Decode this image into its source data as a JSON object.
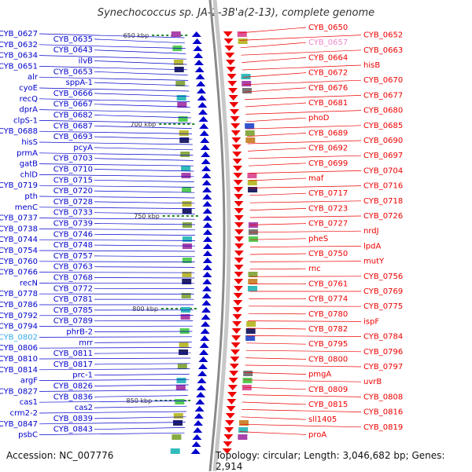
{
  "title": "Synechococcus sp. JA-2-3B'a(2-13), complete genome",
  "accession": "Accession: NC_007776",
  "topology": "Topology: circular; Length: 3,046,682 bp; Genes: 2,914",
  "colors": {
    "forward": "#0000cc",
    "reverse": "#ee0000",
    "tick": "#228822",
    "pink": "#ee88cc",
    "cyan": "#33aaee"
  },
  "kbp_ticks": [
    "650 kbp",
    "700 kbp",
    "750 kbp",
    "800 kbp",
    "850 kbp"
  ],
  "left_labels": [
    "CYB_0627",
    "CYB_0635",
    "CYB_0632",
    "CYB_0643",
    "CYB_0634",
    "ilvB",
    "CYB_0651",
    "CYB_0653",
    "alr",
    "sppA-1",
    "cyoE",
    "CYB_0666",
    "recQ",
    "CYB_0667",
    "dprA",
    "CYB_0682",
    "clpS-1",
    "CYB_0687",
    "CYB_0688",
    "CYB_0693",
    "hisS",
    "pcyA",
    "prmA",
    "CYB_0703",
    "gatB",
    "CYB_0710",
    "chlD",
    "CYB_0715",
    "CYB_0719",
    "CYB_0720",
    "pth",
    "CYB_0728",
    "menC",
    "CYB_0733",
    "CYB_0737",
    "CYB_0739",
    "CYB_0738",
    "CYB_0746",
    "CYB_0744",
    "CYB_0748",
    "CYB_0754",
    "CYB_0757",
    "CYB_0760",
    "CYB_0763",
    "CYB_0766",
    "CYB_0768",
    "recN",
    "CYB_0772",
    "CYB_0778",
    "CYB_0781",
    "CYB_0786",
    "CYB_0785",
    "CYB_0792",
    "CYB_0789",
    "CYB_0794",
    "phrB-2",
    "CYB_0802",
    "mrr",
    "CYB_0806",
    "CYB_0811",
    "CYB_0810",
    "CYB_0817",
    "CYB_0814",
    "prc-1",
    "argF",
    "CYB_0826",
    "CYB_0827",
    "CYB_0836",
    "cas1",
    "cas2",
    "crm2-2",
    "CYB_0839",
    "CYB_0847",
    "CYB_0843",
    "psbC"
  ],
  "right_labels": [
    "CYB_0650",
    "CYB_0652",
    "CYB_0657",
    "CYB_0663",
    "CYB_0664",
    "hisB",
    "CYB_0672",
    "CYB_0670",
    "CYB_0676",
    "CYB_0677",
    "CYB_0681",
    "CYB_0680",
    "phoD",
    "CYB_0685",
    "CYB_0689",
    "CYB_0690",
    "CYB_0692",
    "CYB_0697",
    "CYB_0699",
    "CYB_0704",
    "maf",
    "CYB_0716",
    "CYB_0717",
    "CYB_0718",
    "CYB_0723",
    "CYB_0726",
    "CYB_0727",
    "nrdJ",
    "pheS",
    "lpdA",
    "CYB_0750",
    "mutY",
    "rnc",
    "CYB_0756",
    "CYB_0761",
    "CYB_0769",
    "CYB_0774",
    "CYB_0775",
    "CYB_0780",
    "ispF",
    "CYB_0782",
    "CYB_0784",
    "CYB_0795",
    "CYB_0796",
    "CYB_0800",
    "CYB_0797",
    "pmgA",
    "uvrB",
    "CYB_0809",
    "CYB_0808",
    "CYB_0815",
    "CYB_0816",
    "sll1405",
    "CYB_0819",
    "proA"
  ]
}
